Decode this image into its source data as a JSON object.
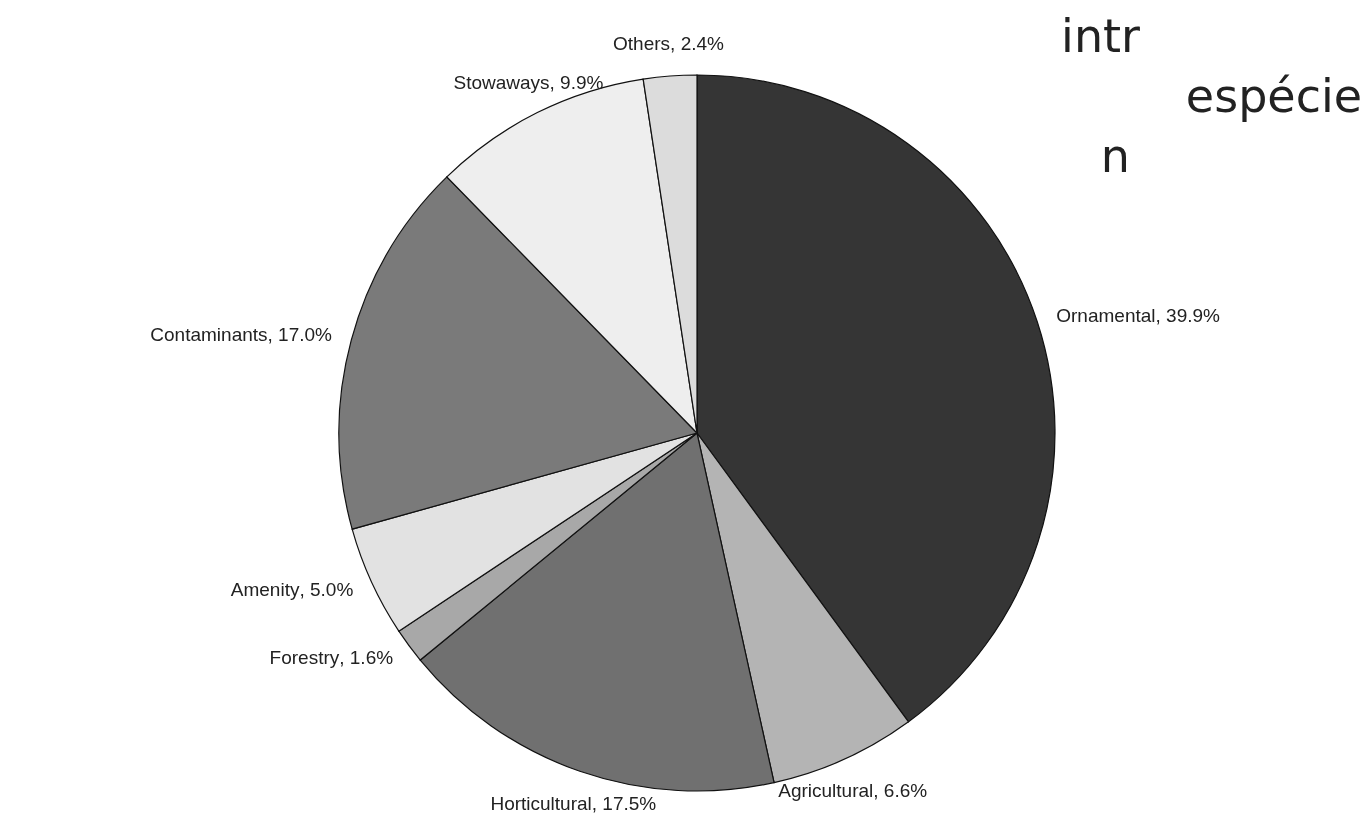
{
  "chart_data": {
    "type": "pie",
    "categories": [
      "Ornamental",
      "Agricultural",
      "Horticultural",
      "Forestry",
      "Amenity",
      "Contaminants",
      "Stowaways",
      "Others"
    ],
    "values": [
      39.9,
      6.6,
      17.5,
      1.6,
      5.0,
      17.0,
      9.9,
      2.4
    ],
    "value_labels": [
      ", 39.9%",
      ", 6.6%",
      ", 17.5%",
      ", 1.6%",
      ", 5.0%",
      ", 17.0%",
      ", 9.9%",
      ", 2.4%"
    ],
    "colors": [
      "#353535",
      "#b4b4b4",
      "#707070",
      "#a8a8a8",
      "#e2e2e2",
      "#7a7a7a",
      "#eeeeee",
      "#dcdcdc"
    ],
    "annotations": [
      "intr",
      "espécie",
      "n"
    ]
  }
}
